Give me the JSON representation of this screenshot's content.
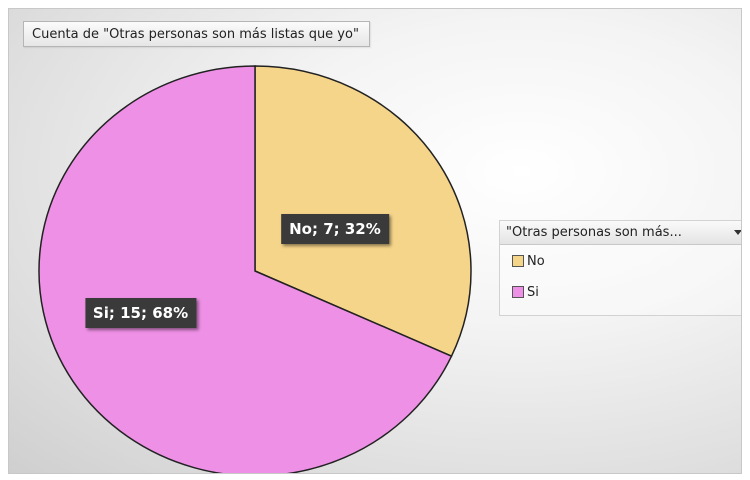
{
  "chart_data": {
    "type": "pie",
    "title": "Cuenta de \"Otras personas son más listas que yo\"",
    "legend_title": "\"Otras personas son más...",
    "legend_position": "right",
    "start_angle_deg": 0,
    "direction": "clockwise",
    "slices": [
      {
        "label": "No",
        "value": 7,
        "percent": "32%",
        "data_label": "No; 7; 32%",
        "color": "#f5d58a"
      },
      {
        "label": "Si",
        "value": 15,
        "percent": "68%",
        "data_label": "Si; 15; 68%",
        "color": "#ee90e6"
      }
    ],
    "slice_border_color": "#222222"
  }
}
